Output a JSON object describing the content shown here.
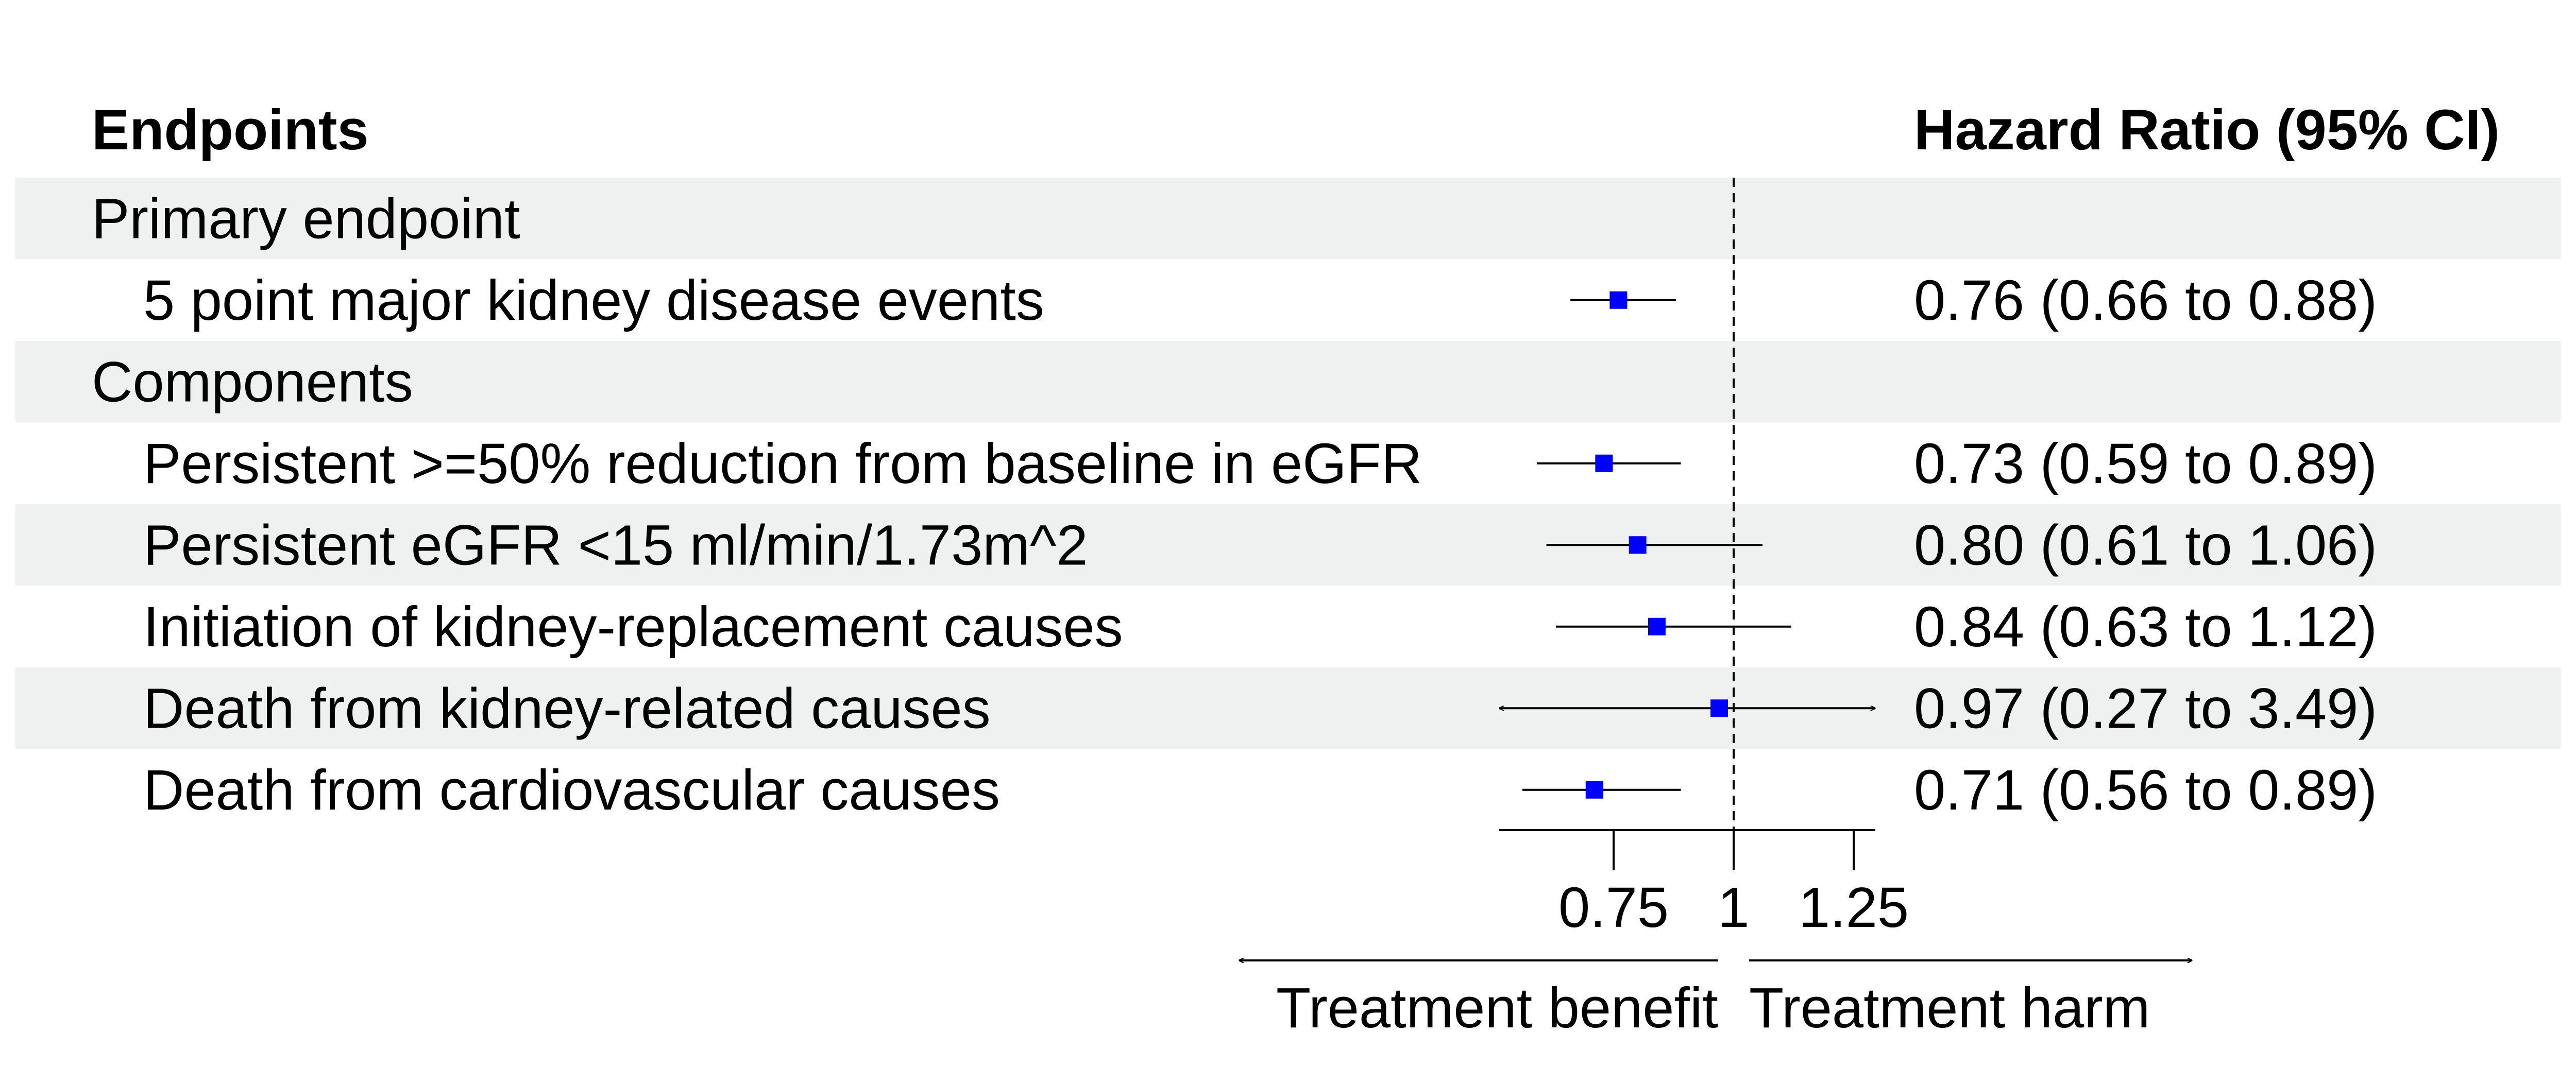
{
  "chart_data": {
    "type": "forest",
    "header": {
      "endpoints": "Endpoints",
      "estimate": "Hazard Ratio (95% CI)"
    },
    "rows": [
      {
        "label": "Primary endpoint",
        "group": true,
        "shaded": true
      },
      {
        "label": "5 point major kidney disease events",
        "group": false,
        "shaded": false,
        "hr": 0.76,
        "lo": 0.66,
        "hi": 0.88,
        "text": "0.76 (0.66 to 0.88)"
      },
      {
        "label": "Components",
        "group": true,
        "shaded": true
      },
      {
        "label": "Persistent >=50% reduction from baseline in eGFR",
        "group": false,
        "shaded": false,
        "hr": 0.73,
        "lo": 0.59,
        "hi": 0.89,
        "text": "0.73 (0.59 to 0.89)"
      },
      {
        "label": "Persistent eGFR <15 ml/min/1.73m^2",
        "group": false,
        "shaded": true,
        "hr": 0.8,
        "lo": 0.61,
        "hi": 1.06,
        "text": "0.80 (0.61 to 1.06)"
      },
      {
        "label": "Initiation of kidney-replacement causes",
        "group": false,
        "shaded": false,
        "hr": 0.84,
        "lo": 0.63,
        "hi": 1.12,
        "text": "0.84 (0.63 to 1.12)"
      },
      {
        "label": "Death from kidney-related causes",
        "group": false,
        "shaded": true,
        "hr": 0.97,
        "lo": 0.27,
        "hi": 3.49,
        "text": "0.97 (0.27 to 3.49)"
      },
      {
        "label": "Death from cardiovascular causes",
        "group": false,
        "shaded": false,
        "hr": 0.71,
        "lo": 0.56,
        "hi": 0.89,
        "text": "0.71 (0.56 to 0.89)"
      }
    ],
    "xlim": [
      0.5,
      1.3
    ],
    "xticks": [
      {
        "value": 0.75,
        "label": "0.75"
      },
      {
        "value": 1,
        "label": "1"
      },
      {
        "value": 1.25,
        "label": "1.25"
      }
    ],
    "reference_line": 1,
    "arrow_labels": {
      "left": "Treatment benefit",
      "right": "Treatment harm"
    },
    "colors": {
      "point": "#0000ff",
      "line": "#000000",
      "shade": "#eff1f0"
    }
  }
}
